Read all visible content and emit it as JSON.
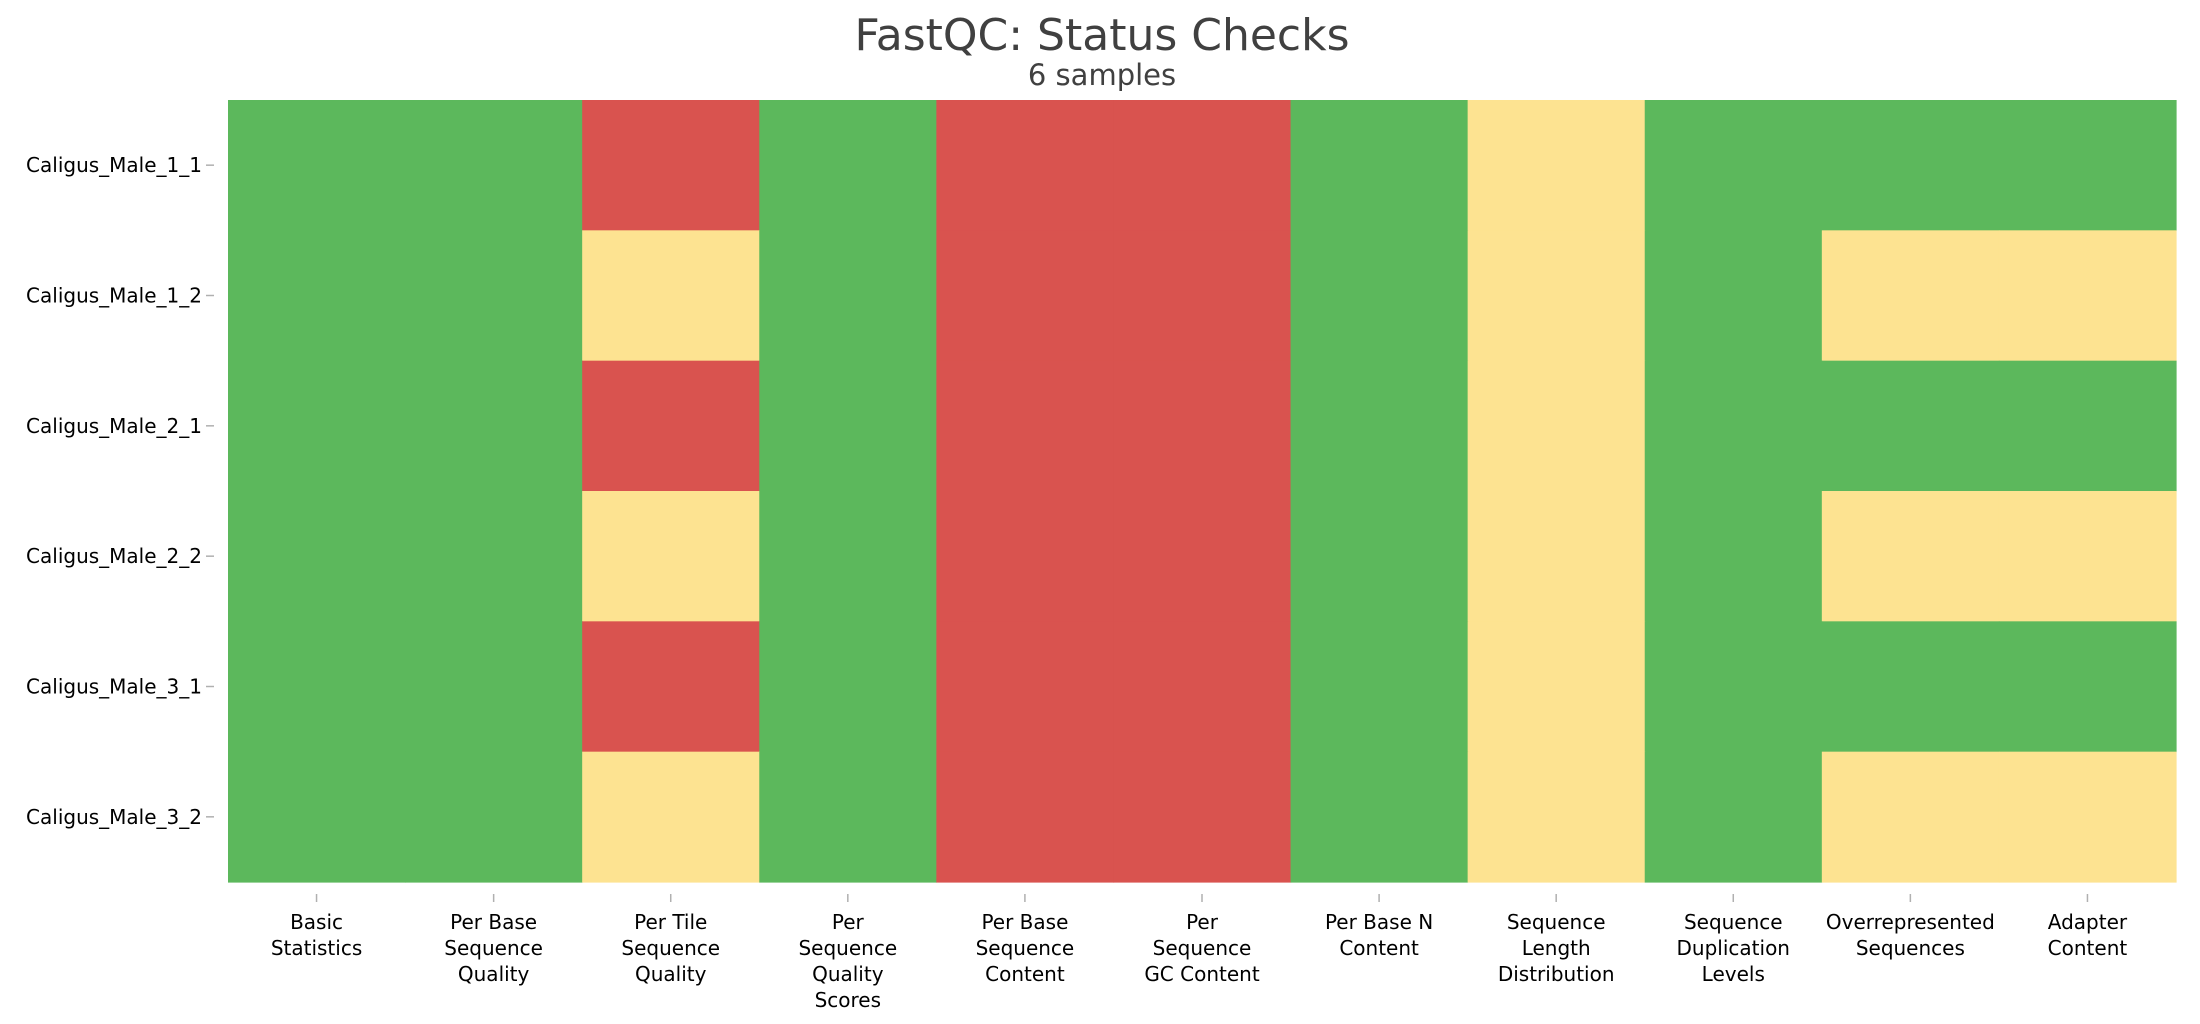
{
  "chart_data": {
    "type": "heatmap",
    "title": "FastQC: Status Checks",
    "subtitle": "6 samples",
    "rows": [
      "Caligus_Male_1_1",
      "Caligus_Male_1_2",
      "Caligus_Male_2_1",
      "Caligus_Male_2_2",
      "Caligus_Male_3_1",
      "Caligus_Male_3_2"
    ],
    "columns": [
      [
        "Basic",
        "Statistics"
      ],
      [
        "Per Base",
        "Sequence",
        "Quality"
      ],
      [
        "Per Tile",
        "Sequence",
        "Quality"
      ],
      [
        "Per",
        "Sequence",
        "Quality",
        "Scores"
      ],
      [
        "Per Base",
        "Sequence",
        "Content"
      ],
      [
        "Per",
        "Sequence",
        "GC Content"
      ],
      [
        "Per Base N",
        "Content"
      ],
      [
        "Sequence",
        "Length",
        "Distribution"
      ],
      [
        "Sequence",
        "Duplication",
        "Levels"
      ],
      [
        "Overrepresented",
        "Sequences"
      ],
      [
        "Adapter",
        "Content"
      ]
    ],
    "values": [
      [
        "pass",
        "pass",
        "fail",
        "pass",
        "fail",
        "fail",
        "pass",
        "warn",
        "pass",
        "pass",
        "pass"
      ],
      [
        "pass",
        "pass",
        "warn",
        "pass",
        "fail",
        "fail",
        "pass",
        "warn",
        "pass",
        "warn",
        "warn"
      ],
      [
        "pass",
        "pass",
        "fail",
        "pass",
        "fail",
        "fail",
        "pass",
        "warn",
        "pass",
        "pass",
        "pass"
      ],
      [
        "pass",
        "pass",
        "warn",
        "pass",
        "fail",
        "fail",
        "pass",
        "warn",
        "pass",
        "warn",
        "warn"
      ],
      [
        "pass",
        "pass",
        "fail",
        "pass",
        "fail",
        "fail",
        "pass",
        "warn",
        "pass",
        "pass",
        "pass"
      ],
      [
        "pass",
        "pass",
        "warn",
        "pass",
        "fail",
        "fail",
        "pass",
        "warn",
        "pass",
        "warn",
        "warn"
      ]
    ],
    "status_colors": {
      "pass": "#5cb85c",
      "warn": "#fde391",
      "fail": "#d9534f"
    },
    "grid": false,
    "legend": "none"
  }
}
